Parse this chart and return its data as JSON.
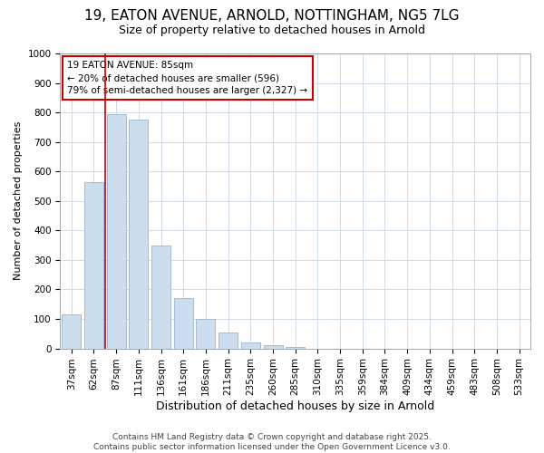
{
  "title_line1": "19, EATON AVENUE, ARNOLD, NOTTINGHAM, NG5 7LG",
  "title_line2": "Size of property relative to detached houses in Arnold",
  "xlabel": "Distribution of detached houses by size in Arnold",
  "ylabel": "Number of detached properties",
  "categories": [
    "37sqm",
    "62sqm",
    "87sqm",
    "111sqm",
    "136sqm",
    "161sqm",
    "186sqm",
    "211sqm",
    "235sqm",
    "260sqm",
    "285sqm",
    "310sqm",
    "335sqm",
    "359sqm",
    "384sqm",
    "409sqm",
    "434sqm",
    "459sqm",
    "483sqm",
    "508sqm",
    "533sqm"
  ],
  "values": [
    115,
    565,
    795,
    775,
    350,
    170,
    100,
    55,
    20,
    10,
    5,
    0,
    0,
    0,
    0,
    0,
    0,
    0,
    0,
    0,
    0
  ],
  "bar_color": "#ccdded",
  "bar_edge_color": "#a0bcd4",
  "grid_color": "#d0dce8",
  "vline_x_index": 2,
  "vline_color": "#cc0000",
  "annotation_text": "19 EATON AVENUE: 85sqm\n← 20% of detached houses are smaller (596)\n79% of semi-detached houses are larger (2,327) →",
  "annotation_box_color": "#cc0000",
  "annotation_fill": "white",
  "ylim": [
    0,
    1000
  ],
  "yticks": [
    0,
    100,
    200,
    300,
    400,
    500,
    600,
    700,
    800,
    900,
    1000
  ],
  "footer_line1": "Contains HM Land Registry data © Crown copyright and database right 2025.",
  "footer_line2": "Contains public sector information licensed under the Open Government Licence v3.0.",
  "background_color": "#ffffff",
  "title_fontsize": 11,
  "subtitle_fontsize": 9,
  "tick_fontsize": 7.5,
  "ylabel_fontsize": 8,
  "xlabel_fontsize": 9,
  "footer_fontsize": 6.5
}
